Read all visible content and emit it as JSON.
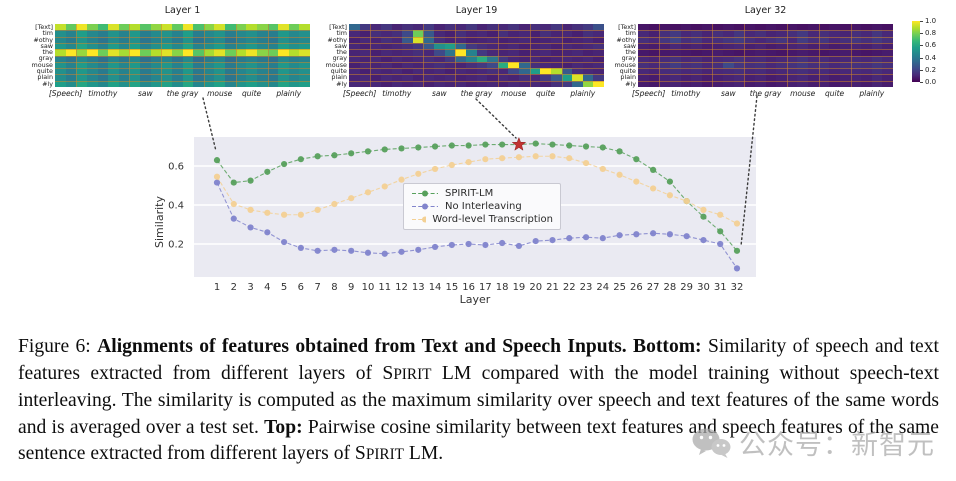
{
  "figure": {
    "heatmap_row_labels": [
      "[Text]",
      "tim",
      "#othy",
      "saw",
      "the",
      "gray",
      "mouse",
      "quite",
      "plain",
      "#ly"
    ],
    "heatmap_col_words": [
      "[Speech]",
      "timothy",
      "saw",
      "the gray",
      "mouse",
      "quite",
      "plainly"
    ],
    "word_col_spans": [
      2,
      5,
      3,
      4,
      3,
      3,
      4
    ],
    "colorbar_ticks": [
      "1.0",
      "0.8",
      "0.6",
      "0.4",
      "0.2",
      "0.0"
    ]
  },
  "chart_data": [
    {
      "type": "heatmap",
      "title": "Layer 1",
      "colormap": "viridis",
      "vmin": 0,
      "vmax": 1,
      "values": [
        [
          0.82,
          0.68,
          0.88,
          0.72,
          0.62,
          0.85,
          0.7,
          0.8,
          0.66,
          0.75,
          0.83,
          0.68,
          0.88,
          0.64,
          0.74,
          0.84,
          0.62,
          0.72,
          0.8,
          0.74,
          0.66,
          0.86,
          0.7,
          0.8
        ],
        [
          0.45,
          0.4,
          0.5,
          0.42,
          0.38,
          0.46,
          0.4,
          0.48,
          0.38,
          0.43,
          0.46,
          0.4,
          0.5,
          0.38,
          0.42,
          0.46,
          0.38,
          0.42,
          0.45,
          0.4,
          0.38,
          0.48,
          0.42,
          0.45
        ],
        [
          0.42,
          0.37,
          0.46,
          0.4,
          0.35,
          0.43,
          0.38,
          0.45,
          0.35,
          0.4,
          0.43,
          0.37,
          0.46,
          0.34,
          0.39,
          0.43,
          0.34,
          0.39,
          0.42,
          0.38,
          0.35,
          0.45,
          0.4,
          0.42
        ],
        [
          0.48,
          0.42,
          0.52,
          0.45,
          0.4,
          0.49,
          0.42,
          0.5,
          0.4,
          0.45,
          0.49,
          0.42,
          0.52,
          0.4,
          0.44,
          0.49,
          0.4,
          0.44,
          0.48,
          0.42,
          0.4,
          0.5,
          0.45,
          0.48
        ],
        [
          0.8,
          0.95,
          0.76,
          0.9,
          0.7,
          0.86,
          0.78,
          0.9,
          0.7,
          0.8,
          0.86,
          0.74,
          0.92,
          0.66,
          0.78,
          0.86,
          0.7,
          0.8,
          0.88,
          0.74,
          0.7,
          0.9,
          0.8,
          0.85
        ],
        [
          0.4,
          0.35,
          0.43,
          0.38,
          0.33,
          0.41,
          0.36,
          0.42,
          0.33,
          0.38,
          0.41,
          0.35,
          0.43,
          0.32,
          0.37,
          0.41,
          0.32,
          0.37,
          0.4,
          0.36,
          0.33,
          0.42,
          0.38,
          0.4
        ],
        [
          0.46,
          0.4,
          0.49,
          0.43,
          0.38,
          0.47,
          0.41,
          0.48,
          0.38,
          0.43,
          0.47,
          0.4,
          0.49,
          0.37,
          0.42,
          0.47,
          0.37,
          0.42,
          0.46,
          0.41,
          0.38,
          0.48,
          0.43,
          0.46
        ],
        [
          0.45,
          0.39,
          0.48,
          0.42,
          0.37,
          0.46,
          0.4,
          0.47,
          0.37,
          0.42,
          0.46,
          0.39,
          0.48,
          0.36,
          0.41,
          0.46,
          0.36,
          0.41,
          0.45,
          0.4,
          0.37,
          0.47,
          0.42,
          0.45
        ],
        [
          0.44,
          0.38,
          0.47,
          0.41,
          0.36,
          0.45,
          0.39,
          0.46,
          0.36,
          0.41,
          0.45,
          0.38,
          0.47,
          0.35,
          0.4,
          0.45,
          0.35,
          0.4,
          0.44,
          0.39,
          0.36,
          0.46,
          0.41,
          0.44
        ],
        [
          0.5,
          0.44,
          0.53,
          0.47,
          0.42,
          0.51,
          0.45,
          0.52,
          0.42,
          0.47,
          0.51,
          0.44,
          0.53,
          0.41,
          0.46,
          0.51,
          0.41,
          0.46,
          0.5,
          0.45,
          0.42,
          0.52,
          0.47,
          0.5
        ]
      ]
    },
    {
      "type": "heatmap",
      "title": "Layer 19",
      "colormap": "viridis",
      "vmin": 0,
      "vmax": 1,
      "values": [
        [
          0.3,
          0.15,
          0.1,
          0.14,
          0.09,
          0.12,
          0.1,
          0.15,
          0.09,
          0.12,
          0.1,
          0.14,
          0.09,
          0.12,
          0.1,
          0.13,
          0.09,
          0.12,
          0.1,
          0.14,
          0.09,
          0.12,
          0.15,
          0.22
        ],
        [
          0.1,
          0.08,
          0.12,
          0.1,
          0.12,
          0.2,
          0.7,
          0.25,
          0.1,
          0.08,
          0.12,
          0.09,
          0.1,
          0.08,
          0.12,
          0.09,
          0.1,
          0.08,
          0.12,
          0.09,
          0.1,
          0.08,
          0.12,
          0.1
        ],
        [
          0.08,
          0.1,
          0.09,
          0.12,
          0.1,
          0.25,
          0.85,
          0.3,
          0.12,
          0.09,
          0.1,
          0.08,
          0.09,
          0.1,
          0.08,
          0.09,
          0.1,
          0.08,
          0.09,
          0.1,
          0.08,
          0.09,
          0.1,
          0.08
        ],
        [
          0.1,
          0.08,
          0.1,
          0.09,
          0.1,
          0.12,
          0.15,
          0.25,
          0.45,
          0.5,
          0.3,
          0.15,
          0.12,
          0.1,
          0.09,
          0.1,
          0.08,
          0.09,
          0.1,
          0.08,
          0.1,
          0.09,
          0.1,
          0.12
        ],
        [
          0.09,
          0.1,
          0.08,
          0.1,
          0.09,
          0.1,
          0.12,
          0.1,
          0.2,
          0.35,
          0.9,
          0.4,
          0.15,
          0.1,
          0.09,
          0.1,
          0.08,
          0.09,
          0.1,
          0.08,
          0.09,
          0.1,
          0.08,
          0.09
        ],
        [
          0.1,
          0.09,
          0.1,
          0.08,
          0.1,
          0.09,
          0.1,
          0.12,
          0.1,
          0.15,
          0.3,
          0.4,
          0.55,
          0.35,
          0.15,
          0.1,
          0.09,
          0.1,
          0.08,
          0.09,
          0.1,
          0.09,
          0.1,
          0.08
        ],
        [
          0.08,
          0.1,
          0.09,
          0.1,
          0.08,
          0.1,
          0.09,
          0.1,
          0.12,
          0.1,
          0.09,
          0.12,
          0.15,
          0.2,
          0.55,
          0.95,
          0.3,
          0.12,
          0.1,
          0.09,
          0.08,
          0.1,
          0.09,
          0.1
        ],
        [
          0.1,
          0.08,
          0.1,
          0.09,
          0.1,
          0.08,
          0.1,
          0.09,
          0.1,
          0.08,
          0.1,
          0.09,
          0.1,
          0.12,
          0.1,
          0.2,
          0.3,
          0.5,
          0.95,
          0.8,
          0.25,
          0.12,
          0.1,
          0.09
        ],
        [
          0.09,
          0.1,
          0.08,
          0.1,
          0.09,
          0.1,
          0.08,
          0.1,
          0.09,
          0.1,
          0.08,
          0.09,
          0.1,
          0.08,
          0.1,
          0.09,
          0.12,
          0.1,
          0.15,
          0.25,
          0.5,
          0.85,
          0.3,
          0.15
        ],
        [
          0.1,
          0.09,
          0.1,
          0.08,
          0.1,
          0.09,
          0.1,
          0.08,
          0.1,
          0.09,
          0.1,
          0.08,
          0.09,
          0.1,
          0.08,
          0.1,
          0.09,
          0.1,
          0.08,
          0.12,
          0.15,
          0.3,
          0.75,
          0.9
        ]
      ]
    },
    {
      "type": "heatmap",
      "title": "Layer 32",
      "colormap": "viridis",
      "vmin": 0,
      "vmax": 1,
      "values": [
        [
          0.05,
          0.04,
          0.05,
          0.04,
          0.05,
          0.04,
          0.05,
          0.04,
          0.05,
          0.04,
          0.05,
          0.04,
          0.05,
          0.04,
          0.05,
          0.04,
          0.05,
          0.04,
          0.05,
          0.04,
          0.05,
          0.04,
          0.05,
          0.04
        ],
        [
          0.1,
          0.08,
          0.12,
          0.15,
          0.1,
          0.12,
          0.09,
          0.12,
          0.1,
          0.14,
          0.1,
          0.12,
          0.09,
          0.1,
          0.12,
          0.15,
          0.1,
          0.12,
          0.1,
          0.09,
          0.12,
          0.1,
          0.14,
          0.1
        ],
        [
          0.12,
          0.1,
          0.14,
          0.18,
          0.12,
          0.14,
          0.1,
          0.12,
          0.14,
          0.16,
          0.12,
          0.1,
          0.12,
          0.14,
          0.1,
          0.16,
          0.12,
          0.14,
          0.1,
          0.12,
          0.14,
          0.12,
          0.15,
          0.12
        ],
        [
          0.08,
          0.07,
          0.08,
          0.1,
          0.08,
          0.09,
          0.07,
          0.08,
          0.09,
          0.1,
          0.08,
          0.09,
          0.07,
          0.08,
          0.09,
          0.1,
          0.08,
          0.09,
          0.07,
          0.08,
          0.09,
          0.08,
          0.1,
          0.08
        ],
        [
          0.06,
          0.05,
          0.06,
          0.07,
          0.06,
          0.05,
          0.06,
          0.07,
          0.06,
          0.05,
          0.06,
          0.07,
          0.06,
          0.05,
          0.06,
          0.07,
          0.06,
          0.05,
          0.06,
          0.07,
          0.06,
          0.05,
          0.06,
          0.07
        ],
        [
          0.1,
          0.09,
          0.11,
          0.13,
          0.1,
          0.11,
          0.09,
          0.1,
          0.11,
          0.13,
          0.1,
          0.11,
          0.09,
          0.1,
          0.11,
          0.13,
          0.1,
          0.11,
          0.09,
          0.1,
          0.11,
          0.1,
          0.12,
          0.1
        ],
        [
          0.12,
          0.1,
          0.13,
          0.16,
          0.12,
          0.13,
          0.1,
          0.12,
          0.2,
          0.14,
          0.12,
          0.13,
          0.1,
          0.12,
          0.13,
          0.15,
          0.12,
          0.13,
          0.1,
          0.12,
          0.13,
          0.12,
          0.14,
          0.12
        ],
        [
          0.1,
          0.09,
          0.11,
          0.12,
          0.1,
          0.11,
          0.09,
          0.1,
          0.11,
          0.12,
          0.1,
          0.11,
          0.09,
          0.1,
          0.11,
          0.12,
          0.1,
          0.11,
          0.09,
          0.1,
          0.11,
          0.1,
          0.12,
          0.1
        ],
        [
          0.08,
          0.07,
          0.09,
          0.1,
          0.08,
          0.09,
          0.07,
          0.08,
          0.09,
          0.1,
          0.08,
          0.09,
          0.07,
          0.08,
          0.09,
          0.1,
          0.08,
          0.09,
          0.07,
          0.08,
          0.09,
          0.08,
          0.1,
          0.08
        ],
        [
          0.07,
          0.06,
          0.08,
          0.09,
          0.07,
          0.08,
          0.06,
          0.07,
          0.08,
          0.09,
          0.07,
          0.08,
          0.06,
          0.07,
          0.08,
          0.09,
          0.07,
          0.08,
          0.06,
          0.07,
          0.08,
          0.07,
          0.09,
          0.07
        ]
      ]
    },
    {
      "type": "line",
      "title": "",
      "xlabel": "Layer",
      "ylabel": "Similarity",
      "x": [
        1,
        2,
        3,
        4,
        5,
        6,
        7,
        8,
        9,
        10,
        11,
        12,
        13,
        14,
        15,
        16,
        17,
        18,
        19,
        20,
        21,
        22,
        23,
        24,
        25,
        26,
        27,
        28,
        29,
        30,
        31,
        32
      ],
      "yticks": [
        0.2,
        0.4,
        0.6
      ],
      "ylim": [
        0.03,
        0.75
      ],
      "grid": true,
      "legend_position": "center",
      "background": "#eaeaf2",
      "series": [
        {
          "name": "SPIRIT-LM",
          "color": "#57a05c",
          "values": [
            0.63,
            0.515,
            0.525,
            0.57,
            0.61,
            0.635,
            0.65,
            0.655,
            0.665,
            0.675,
            0.685,
            0.69,
            0.695,
            0.7,
            0.705,
            0.705,
            0.71,
            0.71,
            0.71,
            0.715,
            0.71,
            0.705,
            0.7,
            0.695,
            0.675,
            0.635,
            0.58,
            0.52,
            0.42,
            0.34,
            0.265,
            0.165
          ]
        },
        {
          "name": "No Interleaving",
          "color": "#8184cc",
          "values": [
            0.515,
            0.33,
            0.285,
            0.26,
            0.21,
            0.18,
            0.165,
            0.17,
            0.165,
            0.155,
            0.15,
            0.16,
            0.17,
            0.185,
            0.195,
            0.2,
            0.195,
            0.205,
            0.19,
            0.215,
            0.22,
            0.23,
            0.235,
            0.23,
            0.245,
            0.25,
            0.255,
            0.25,
            0.24,
            0.22,
            0.2,
            0.075
          ]
        },
        {
          "name": "Word-level Transcription",
          "color": "#f3d094",
          "values": [
            0.545,
            0.405,
            0.375,
            0.36,
            0.35,
            0.35,
            0.375,
            0.405,
            0.435,
            0.465,
            0.495,
            0.53,
            0.56,
            0.585,
            0.605,
            0.62,
            0.635,
            0.64,
            0.645,
            0.65,
            0.65,
            0.64,
            0.615,
            0.585,
            0.555,
            0.52,
            0.485,
            0.45,
            0.42,
            0.375,
            0.35,
            0.305
          ]
        }
      ],
      "annotations": [
        {
          "type": "star",
          "x": 19,
          "y": 0.71,
          "color": "#c23232",
          "series": "SPIRIT-LM"
        }
      ]
    }
  ],
  "caption": {
    "segments": [
      {
        "text": "Figure 6: ",
        "style": "normal"
      },
      {
        "text": "Alignments of features obtained from Text and Speech Inputs. Bottom: ",
        "style": "bold"
      },
      {
        "text": "Similarity of speech and text features extracted from different layers of ",
        "style": "normal"
      },
      {
        "text": "Spirit",
        "style": "smallcaps"
      },
      {
        "text": " LM compared with the model training without speech-text interleaving. The similarity is computed as the maximum similarity over speech and text features of the same words and is averaged over a test set. ",
        "style": "normal"
      },
      {
        "text": "Top: ",
        "style": "bold"
      },
      {
        "text": "Pairwise cosine similarity between text features and speech features of the same sentence extracted from different layers of ",
        "style": "normal"
      },
      {
        "text": "Spirit",
        "style": "smallcaps"
      },
      {
        "text": " LM.",
        "style": "normal"
      }
    ]
  },
  "watermark": {
    "text": "公众号：新智元"
  }
}
